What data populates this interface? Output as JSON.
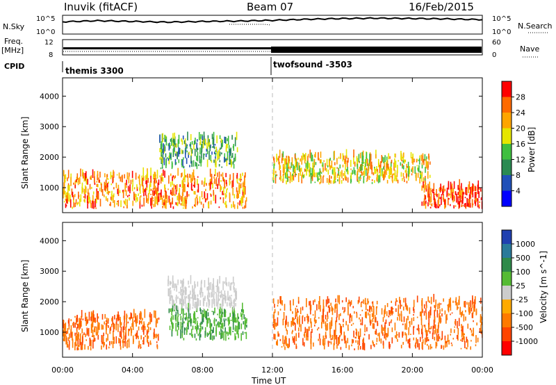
{
  "header": {
    "station": "Inuvik (fitACF)",
    "beam": "Beam 07",
    "date": "16/Feb/2015"
  },
  "noise_panel": {
    "left_label": "N.Sky",
    "right_label": "N.Search",
    "left_ticks": [
      "10^5",
      "10^0"
    ],
    "right_ticks": [
      "10^5",
      "10^0"
    ]
  },
  "freq_panel": {
    "left_label": "Freq.",
    "left_unit": "[MHz]",
    "left_ticks": [
      "12",
      "8"
    ],
    "right_label": "Nave",
    "right_ticks": [
      "60",
      "0"
    ]
  },
  "cpid_panel": {
    "label": "CPID",
    "modes": [
      {
        "name": "themis 3300",
        "start_hour": 0
      },
      {
        "name": "twofsound -3503",
        "start_hour": 12
      }
    ]
  },
  "time_axis": {
    "label": "Time UT",
    "ticks": [
      "00:00",
      "04:00",
      "08:00",
      "12:00",
      "16:00",
      "20:00",
      "00:00"
    ],
    "tick_hours": [
      0,
      4,
      8,
      12,
      16,
      20,
      24
    ]
  },
  "range_axis": {
    "label": "Slant Range [km]",
    "ticks": [
      "1000",
      "2000",
      "3000",
      "4000"
    ],
    "tick_values": [
      1000,
      2000,
      3000,
      4000
    ],
    "ylim": [
      180,
      4600
    ]
  },
  "power_colorbar": {
    "label": "Power [dB]",
    "ticks": [
      "4",
      "8",
      "12",
      "16",
      "20",
      "24",
      "28"
    ],
    "colors": [
      "#0000ff",
      "#2050b8",
      "#2a8a52",
      "#3fbf3f",
      "#e6e600",
      "#ffa500",
      "#ff6a00",
      "#ff0000"
    ]
  },
  "velocity_colorbar": {
    "label": "Velocity [m s^-1]",
    "ticks": [
      "1000",
      "500",
      "100",
      "25",
      "-25",
      "-100",
      "-500",
      "-1000"
    ],
    "colors": [
      "#2040b0",
      "#2a7a9a",
      "#2f8a4a",
      "#55bb33",
      "#cccccc",
      "#ffaa00",
      "#ff7a00",
      "#ff4400",
      "#ff0000"
    ]
  },
  "chart_data": [
    {
      "type": "line",
      "title": "",
      "series": [
        {
          "name": "N.Sky",
          "x": [
            0,
            2,
            4,
            6,
            8,
            10,
            12,
            14,
            16,
            18,
            20,
            22,
            24
          ],
          "values": [
            3.2,
            3.5,
            3.3,
            3.1,
            3.3,
            3.4,
            3.6,
            3.9,
            4.1,
            4.2,
            4.1,
            4.0,
            3.8
          ]
        }
      ]
    },
    {
      "type": "heatmap",
      "title": "",
      "ylabel": "Slant Range [km]",
      "xlabel": "Time UT",
      "regions": [
        {
          "name": "",
          "x": [
            0,
            10.5
          ],
          "y": [
            300,
            1400
          ],
          "value": 24
        },
        {
          "name": "",
          "x": [
            5.5,
            10
          ],
          "y": [
            1600,
            2600
          ],
          "value": 12
        },
        {
          "name": "",
          "x": [
            12,
            21
          ],
          "y": [
            1100,
            2000
          ],
          "value": 20
        },
        {
          "name": "",
          "x": [
            20.5,
            24
          ],
          "y": [
            300,
            1000
          ],
          "value": 28
        }
      ]
    },
    {
      "type": "heatmap",
      "title": "",
      "ylabel": "Slant Range [km]",
      "xlabel": "Time UT",
      "regions": [
        {
          "name": "",
          "x": [
            0,
            5.5
          ],
          "y": [
            400,
            1500
          ],
          "value": -500
        },
        {
          "name": "",
          "x": [
            6,
            10.5
          ],
          "y": [
            700,
            1700
          ],
          "value": 100
        },
        {
          "name": "",
          "x": [
            6,
            10
          ],
          "y": [
            1700,
            2600
          ],
          "value": 0
        },
        {
          "name": "",
          "x": [
            12,
            24
          ],
          "y": [
            400,
            2000
          ],
          "value": -500
        }
      ]
    }
  ]
}
